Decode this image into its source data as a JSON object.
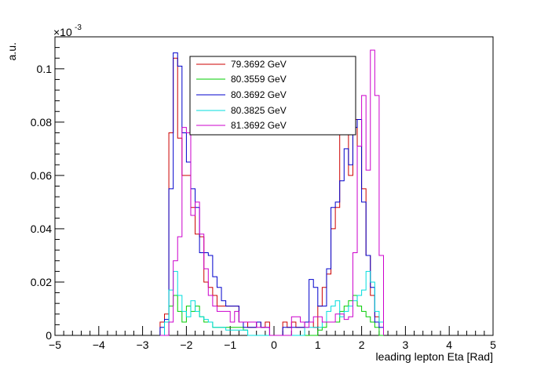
{
  "chart_data": {
    "type": "histogram",
    "ylabel": "a.u.",
    "xlabel": "leading lepton Eta [Rad]",
    "yexponent": "×10",
    "yexponent_power": "-3",
    "xlim": [
      -5,
      5
    ],
    "ylim": [
      0,
      0.112
    ],
    "x_ticks": [
      "−5",
      "−4",
      "−3",
      "−2",
      "−1",
      "0",
      "1",
      "2",
      "3",
      "4",
      "5"
    ],
    "y_ticks": [
      "0",
      "0.02",
      "0.04",
      "0.06",
      "0.08",
      "0.1"
    ],
    "grid": false,
    "legend_position": "top-center",
    "bin_edges": [
      -2.6,
      -2.5,
      -2.4,
      -2.3,
      -2.2,
      -2.1,
      -2.0,
      -1.9,
      -1.8,
      -1.7,
      -1.6,
      -1.5,
      -1.4,
      -1.3,
      -1.2,
      -1.1,
      -1.0,
      -0.9,
      -0.8,
      -0.7,
      -0.6,
      -0.5,
      -0.4,
      -0.3,
      -0.2,
      -0.1,
      0.0,
      0.1,
      0.2,
      0.3,
      0.4,
      0.5,
      0.6,
      0.7,
      0.8,
      0.9,
      1.0,
      1.1,
      1.2,
      1.3,
      1.4,
      1.5,
      1.6,
      1.7,
      1.8,
      1.9,
      2.0,
      2.1,
      2.2,
      2.3,
      2.4,
      2.5
    ],
    "series": [
      {
        "name": "79.3692 GeV",
        "color": "#cc0000",
        "values": [
          0.005,
          0.008,
          0.076,
          0.104,
          0.074,
          0.06,
          0.06,
          0.048,
          0.038,
          0.037,
          0.02,
          0.018,
          0.015,
          0.011,
          0.011,
          0.011,
          0.011,
          0.011,
          0.005,
          0.005,
          0.003,
          0.003,
          0.005,
          0.003,
          0.005,
          0,
          0,
          0,
          0.005,
          0.003,
          0.005,
          0.003,
          0.003,
          0.005,
          0.005,
          0.003,
          0.011,
          0.018,
          0.023,
          0.04,
          0.048,
          0.076,
          0.087,
          0.06,
          0.081,
          0.071,
          0.055,
          0.03,
          0.015,
          0.007,
          0.005
        ]
      },
      {
        "name": "80.3559 GeV",
        "color": "#00cc00",
        "values": [
          0,
          0,
          0.011,
          0.015,
          0.009,
          0.005,
          0.011,
          0.009,
          0.011,
          0.007,
          0.005,
          0.005,
          0.003,
          0.003,
          0.003,
          0.003,
          0.003,
          0.003,
          0.003,
          0.002,
          0,
          0,
          0,
          0,
          0,
          0,
          0,
          0,
          0,
          0,
          0,
          0,
          0,
          0,
          0,
          0,
          0.002,
          0.003,
          0.005,
          0.005,
          0.005,
          0.009,
          0.011,
          0.013,
          0.015,
          0.011,
          0.009,
          0.007,
          0.005,
          0.003,
          0
        ]
      },
      {
        "name": "80.3692 GeV",
        "color": "#0000cc",
        "values": [
          0.003,
          0.006,
          0.055,
          0.106,
          0.101,
          0.076,
          0.065,
          0.055,
          0.048,
          0.031,
          0.031,
          0.03,
          0.022,
          0.018,
          0.013,
          0.011,
          0.011,
          0.011,
          0.005,
          0.003,
          0.003,
          0.003,
          0.005,
          0.003,
          0.003,
          0,
          0,
          0,
          0.003,
          0.003,
          0.003,
          0.003,
          0.003,
          0.005,
          0.021,
          0.018,
          0.011,
          0.011,
          0.025,
          0.048,
          0.05,
          0.058,
          0.07,
          0.064,
          0.078,
          0.081,
          0.05,
          0.03,
          0.018,
          0.005,
          0.003
        ]
      },
      {
        "name": "80.3825 GeV",
        "color": "#00dddd",
        "values": [
          0,
          0.005,
          0.017,
          0.024,
          0.015,
          0.009,
          0.007,
          0.013,
          0.009,
          0.007,
          0.006,
          0.005,
          0.003,
          0.003,
          0.003,
          0.002,
          0.002,
          0.002,
          0.002,
          0.002,
          0,
          0,
          0,
          0,
          0,
          0,
          0,
          0,
          0,
          0,
          0,
          0,
          0,
          0.003,
          0.003,
          0.003,
          0.003,
          0.005,
          0.009,
          0.011,
          0.013,
          0.007,
          0.009,
          0.011,
          0.013,
          0.015,
          0.017,
          0.024,
          0.02,
          0.009,
          0.005
        ]
      },
      {
        "name": "81.3692 GeV",
        "color": "#cc00cc",
        "values": [
          0,
          0,
          0.005,
          0.028,
          0.037,
          0.078,
          0.076,
          0.045,
          0.05,
          0.038,
          0.025,
          0.015,
          0.011,
          0.009,
          0.009,
          0.009,
          0.005,
          0.009,
          0.005,
          0.005,
          0.005,
          0.005,
          0.003,
          0.003,
          0.003,
          0,
          0,
          0,
          0,
          0,
          0.007,
          0.007,
          0.005,
          0.003,
          0.005,
          0.007,
          0.007,
          0.005,
          0.005,
          0.005,
          0.008,
          0.008,
          0.006,
          0.007,
          0.031,
          0.071,
          0.09,
          0.062,
          0.107,
          0.09,
          0.03
        ]
      }
    ]
  }
}
